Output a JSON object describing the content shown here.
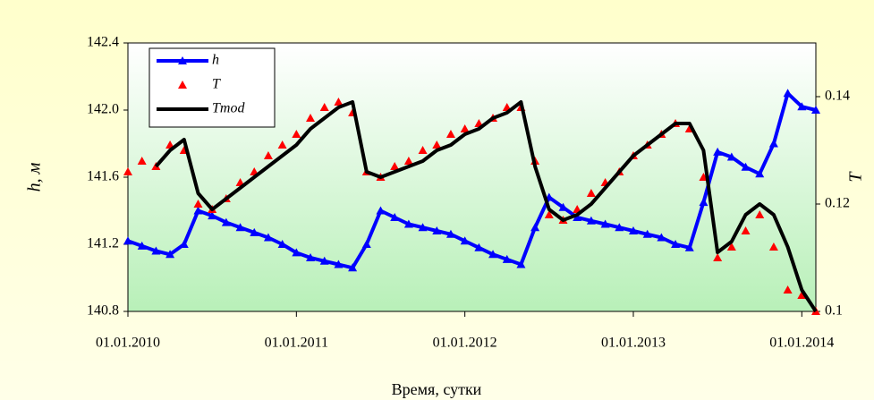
{
  "chart_data": {
    "type": "line",
    "x_label": "Время, сутки",
    "y_label": "h, м",
    "y2_label": "T",
    "x": [
      "01.01.2010",
      "01.02.2010",
      "01.03.2010",
      "01.04.2010",
      "01.05.2010",
      "01.06.2010",
      "01.07.2010",
      "01.08.2010",
      "01.09.2010",
      "01.10.2010",
      "01.11.2010",
      "01.12.2010",
      "01.01.2011",
      "01.02.2011",
      "01.03.2011",
      "01.04.2011",
      "01.05.2011",
      "01.06.2011",
      "01.07.2011",
      "01.08.2011",
      "01.09.2011",
      "01.10.2011",
      "01.11.2011",
      "01.12.2011",
      "01.01.2012",
      "01.02.2012",
      "01.03.2012",
      "01.04.2012",
      "01.05.2012",
      "01.06.2012",
      "01.07.2012",
      "01.08.2012",
      "01.09.2012",
      "01.10.2012",
      "01.11.2012",
      "01.12.2012",
      "01.01.2013",
      "01.02.2013",
      "01.03.2013",
      "01.04.2013",
      "01.05.2013",
      "01.06.2013",
      "01.07.2013",
      "01.08.2013",
      "01.09.2013",
      "01.10.2013",
      "01.11.2013",
      "01.12.2013",
      "01.01.2014",
      "01.02.2014"
    ],
    "series": [
      {
        "name": "h",
        "color": "#0000ff",
        "marker": "triangle",
        "line": true,
        "values": [
          141.22,
          141.19,
          141.16,
          141.14,
          141.2,
          141.4,
          141.37,
          141.33,
          141.3,
          141.27,
          141.24,
          141.2,
          141.15,
          141.12,
          141.1,
          141.08,
          141.06,
          141.2,
          141.4,
          141.36,
          141.32,
          141.3,
          141.28,
          141.26,
          141.22,
          141.18,
          141.14,
          141.11,
          141.08,
          141.3,
          141.48,
          141.42,
          141.36,
          141.34,
          141.32,
          141.3,
          141.28,
          141.26,
          141.24,
          141.2,
          141.18,
          141.45,
          141.75,
          141.72,
          141.66,
          141.62,
          141.8,
          142.1,
          142.02,
          142.0
        ]
      },
      {
        "name": "T",
        "color": "#ff0000",
        "marker": "triangle",
        "line": false,
        "axis": "y2",
        "values": [
          0.126,
          0.128,
          0.127,
          0.131,
          0.13,
          0.12,
          0.119,
          0.121,
          0.124,
          0.126,
          0.129,
          0.131,
          0.133,
          0.136,
          0.138,
          0.139,
          0.137,
          0.126,
          0.125,
          0.127,
          0.128,
          0.13,
          0.131,
          0.133,
          0.134,
          0.135,
          0.136,
          0.138,
          0.138,
          0.128,
          0.118,
          0.117,
          0.119,
          0.122,
          0.124,
          0.126,
          0.129,
          0.131,
          0.133,
          0.135,
          0.134,
          0.125,
          0.11,
          0.112,
          0.115,
          0.118,
          0.112,
          0.104,
          0.103,
          0.1
        ]
      },
      {
        "name": "Tmod",
        "color": "#000000",
        "marker": null,
        "line": true,
        "axis": "y2",
        "values": [
          null,
          null,
          0.127,
          0.13,
          0.132,
          0.122,
          0.119,
          0.121,
          0.123,
          0.125,
          0.127,
          0.129,
          0.131,
          0.134,
          0.136,
          0.138,
          0.139,
          0.126,
          0.125,
          0.126,
          0.127,
          0.128,
          0.13,
          0.131,
          0.133,
          0.134,
          0.136,
          0.137,
          0.139,
          0.127,
          0.119,
          0.117,
          0.118,
          0.12,
          0.123,
          0.126,
          0.129,
          0.131,
          0.133,
          0.135,
          0.135,
          0.13,
          0.111,
          0.113,
          0.118,
          0.12,
          0.118,
          0.112,
          0.104,
          0.1
        ]
      }
    ],
    "xlim": [
      "01.01.2010",
      "01.02.2014"
    ],
    "xticks": [
      "01.01.2010",
      "01.01.2011",
      "01.01.2012",
      "01.01.2013",
      "01.01.2014"
    ],
    "ylim": [
      140.8,
      142.4
    ],
    "yticks": [
      {
        "value": 140.8,
        "label": "140.8"
      },
      {
        "value": 141.2,
        "label": "141.2"
      },
      {
        "value": 141.6,
        "label": "141.6"
      },
      {
        "value": 142.0,
        "label": "142.0"
      },
      {
        "value": 142.4,
        "label": "142.4"
      }
    ],
    "y2lim": [
      0.1,
      0.15
    ],
    "y2ticks": [
      0.1,
      0.12,
      0.14
    ],
    "legend": "upper left"
  }
}
